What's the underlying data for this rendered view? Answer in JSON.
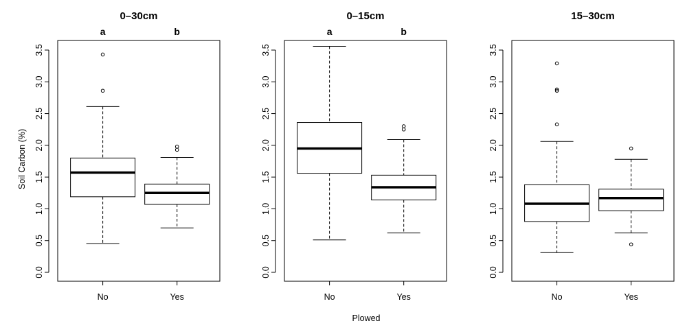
{
  "figure": {
    "ylabel": "Soil Carbon (%)",
    "xlabel": "Plowed"
  },
  "chart_data": [
    {
      "type": "box",
      "title": "0–30cm",
      "categories": [
        "No",
        "Yes"
      ],
      "significance": [
        "a",
        "b"
      ],
      "ylim": [
        0.0,
        3.6
      ],
      "yticks": [
        "0.0",
        "0.5",
        "1.0",
        "1.5",
        "2.0",
        "2.5",
        "3.0",
        "3.5"
      ],
      "boxes": [
        {
          "name": "No",
          "whisker_low": 0.45,
          "q1": 1.19,
          "median": 1.57,
          "q3": 1.8,
          "whisker_high": 2.61,
          "outliers": [
            2.86,
            3.43
          ]
        },
        {
          "name": "Yes",
          "whisker_low": 0.7,
          "q1": 1.07,
          "median": 1.25,
          "q3": 1.39,
          "whisker_high": 1.81,
          "outliers": [
            1.93,
            1.98
          ]
        }
      ]
    },
    {
      "type": "box",
      "title": "0–15cm",
      "categories": [
        "No",
        "Yes"
      ],
      "significance": [
        "a",
        "b"
      ],
      "ylim": [
        0.0,
        3.6
      ],
      "yticks": [
        "0.0",
        "0.5",
        "1.0",
        "1.5",
        "2.0",
        "2.5",
        "3.0",
        "3.5"
      ],
      "boxes": [
        {
          "name": "No",
          "whisker_low": 0.51,
          "q1": 1.56,
          "median": 1.95,
          "q3": 2.36,
          "whisker_high": 3.56,
          "outliers": []
        },
        {
          "name": "Yes",
          "whisker_low": 0.62,
          "q1": 1.14,
          "median": 1.34,
          "q3": 1.53,
          "whisker_high": 2.09,
          "outliers": [
            2.25,
            2.3
          ]
        }
      ]
    },
    {
      "type": "box",
      "title": "15–30cm",
      "categories": [
        "No",
        "Yes"
      ],
      "significance": [
        "",
        ""
      ],
      "ylim": [
        0.0,
        3.6
      ],
      "yticks": [
        "0.0",
        "0.5",
        "1.0",
        "1.5",
        "2.0",
        "2.5",
        "3.0",
        "3.5"
      ],
      "boxes": [
        {
          "name": "No",
          "whisker_low": 0.31,
          "q1": 0.8,
          "median": 1.08,
          "q3": 1.38,
          "whisker_high": 2.06,
          "outliers": [
            2.33,
            2.86,
            2.88,
            3.29
          ]
        },
        {
          "name": "Yes",
          "whisker_low": 0.62,
          "q1": 0.97,
          "median": 1.17,
          "q3": 1.31,
          "whisker_high": 1.78,
          "outliers": [
            0.44,
            1.95
          ]
        }
      ]
    }
  ]
}
